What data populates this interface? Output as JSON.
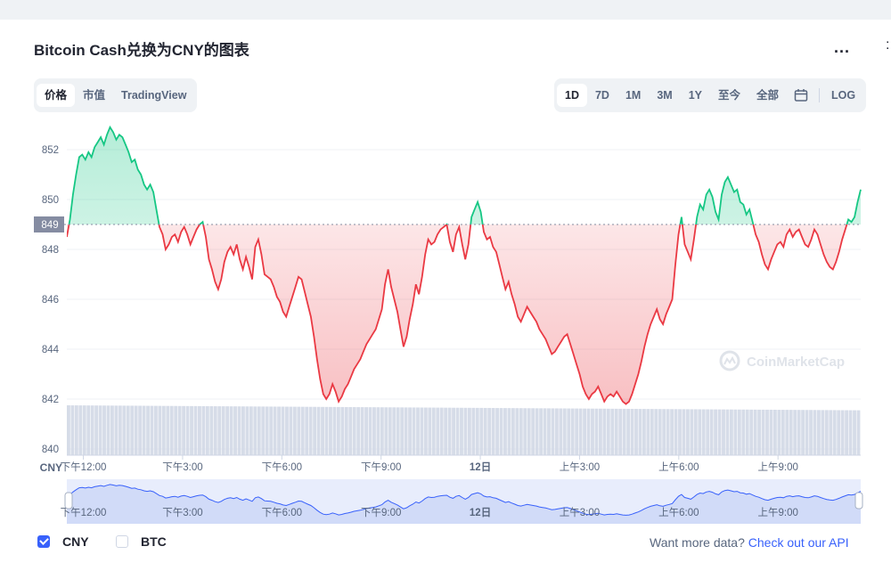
{
  "header": {
    "title": "Bitcoin Cash兑换为CNY的图表",
    "more_label": "..."
  },
  "view_tabs": [
    {
      "label": "价格",
      "active": true
    },
    {
      "label": "市值",
      "active": false
    },
    {
      "label": "TradingView",
      "active": false
    }
  ],
  "range_tabs": [
    {
      "label": "1D",
      "active": true
    },
    {
      "label": "7D",
      "active": false
    },
    {
      "label": "1M",
      "active": false
    },
    {
      "label": "3M",
      "active": false
    },
    {
      "label": "1Y",
      "active": false
    },
    {
      "label": "至今",
      "active": false
    },
    {
      "label": "全部",
      "active": false
    }
  ],
  "log_label": "LOG",
  "icons": {
    "calendar": "calendar-icon",
    "watermark": "coinmarketcap-logo-icon"
  },
  "colors": {
    "up": "#16c784",
    "down": "#ea3943",
    "accent": "#3861fb",
    "grid": "#eff2f5",
    "volume": "#cfd6e4",
    "navigator": "#e8edfc"
  },
  "chart_data": {
    "type": "area",
    "currency_label": "CNY",
    "y_ticks": [
      "852",
      "850",
      "848",
      "846",
      "844",
      "842",
      "840"
    ],
    "ylim": [
      840,
      853.5
    ],
    "baseline": 849,
    "baseline_label": "849",
    "x_ticks": [
      "下午12:00",
      "下午3:00",
      "下午6:00",
      "下午9:00",
      "12日",
      "上午3:00",
      "上午6:00",
      "上午9:00"
    ],
    "x_tick_hours": [
      0,
      3,
      6,
      9,
      12,
      15,
      18,
      21
    ],
    "watermark": "CoinMarketCap",
    "series": [
      {
        "values": [
          848.5,
          849.2,
          850.2,
          851.0,
          851.7,
          851.8,
          851.6,
          851.9,
          851.7,
          852.1,
          852.3,
          852.5,
          852.2,
          852.6,
          852.9,
          852.7,
          852.4,
          852.6,
          852.5,
          852.2,
          851.9,
          851.5,
          851.6,
          851.2,
          851.0,
          850.6,
          850.4,
          850.6,
          850.3,
          849.6,
          848.9,
          848.6,
          848.0,
          848.2,
          848.5,
          848.6,
          848.3,
          848.7,
          848.9,
          848.6,
          848.2,
          848.5,
          848.8,
          849.0,
          849.1,
          848.5,
          847.6,
          847.2,
          846.7,
          846.4,
          846.8,
          847.5,
          847.9,
          848.1,
          847.8,
          848.2,
          847.6,
          847.2,
          847.7,
          847.3,
          846.8,
          848.1,
          848.4,
          847.8,
          847.0,
          846.9,
          846.8,
          846.5,
          846.1,
          845.9,
          845.5,
          845.3,
          845.7,
          846.1,
          846.5,
          846.9,
          846.8,
          846.3,
          845.8,
          845.3,
          844.5,
          843.6,
          842.8,
          842.2,
          842.0,
          842.2,
          842.6,
          842.3,
          841.9,
          842.1,
          842.4,
          842.6,
          842.9,
          843.2,
          843.4,
          843.6,
          843.9,
          844.2,
          844.4,
          844.6,
          844.8,
          845.2,
          845.6,
          846.6,
          847.2,
          846.5,
          846.0,
          845.5,
          844.8,
          844.1,
          844.5,
          845.2,
          845.8,
          846.6,
          846.2,
          846.9,
          847.8,
          848.4,
          848.2,
          848.3,
          848.6,
          848.8,
          848.9,
          849.0,
          848.3,
          847.9,
          848.6,
          848.9,
          848.2,
          847.6,
          848.2,
          849.3,
          849.6,
          849.9,
          849.5,
          848.7,
          848.4,
          848.5,
          848.1,
          847.9,
          847.4,
          846.9,
          846.4,
          846.7,
          846.2,
          845.8,
          845.3,
          845.1,
          845.4,
          845.7,
          845.5,
          845.3,
          845.1,
          844.8,
          844.6,
          844.4,
          844.1,
          843.8,
          843.9,
          844.1,
          844.3,
          844.5,
          844.6,
          844.2,
          843.8,
          843.4,
          843.0,
          842.5,
          842.2,
          842.0,
          842.2,
          842.3,
          842.5,
          842.2,
          841.9,
          842.1,
          842.2,
          842.1,
          842.3,
          842.1,
          841.9,
          841.8,
          841.9,
          842.2,
          842.6,
          843.0,
          843.5,
          844.1,
          844.6,
          845.0,
          845.3,
          845.6,
          845.2,
          845.0,
          845.4,
          845.7,
          846.0,
          847.4,
          848.6,
          849.3,
          848.2,
          847.9,
          847.6,
          848.4,
          849.3,
          849.8,
          849.6,
          850.2,
          850.4,
          850.1,
          849.5,
          849.2,
          850.2,
          850.7,
          850.9,
          850.6,
          850.3,
          850.4,
          849.9,
          849.8,
          849.4,
          849.6,
          849.1,
          848.6,
          848.3,
          847.8,
          847.4,
          847.2,
          847.6,
          847.9,
          848.2,
          848.3,
          848.1,
          848.6,
          848.8,
          848.5,
          848.7,
          848.8,
          848.5,
          848.2,
          848.1,
          848.4,
          848.8,
          848.6,
          848.2,
          847.8,
          847.5,
          847.3,
          847.2,
          847.5,
          847.9,
          848.4,
          848.8,
          849.2,
          849.1,
          849.3,
          849.9,
          850.4
        ]
      }
    ],
    "volume_relative": [
      1.0,
      0.9
    ]
  },
  "legend": [
    {
      "label": "CNY",
      "checked": true
    },
    {
      "label": "BTC",
      "checked": false
    }
  ],
  "footer": {
    "prompt": "Want more data?",
    "link": "Check out our API"
  }
}
